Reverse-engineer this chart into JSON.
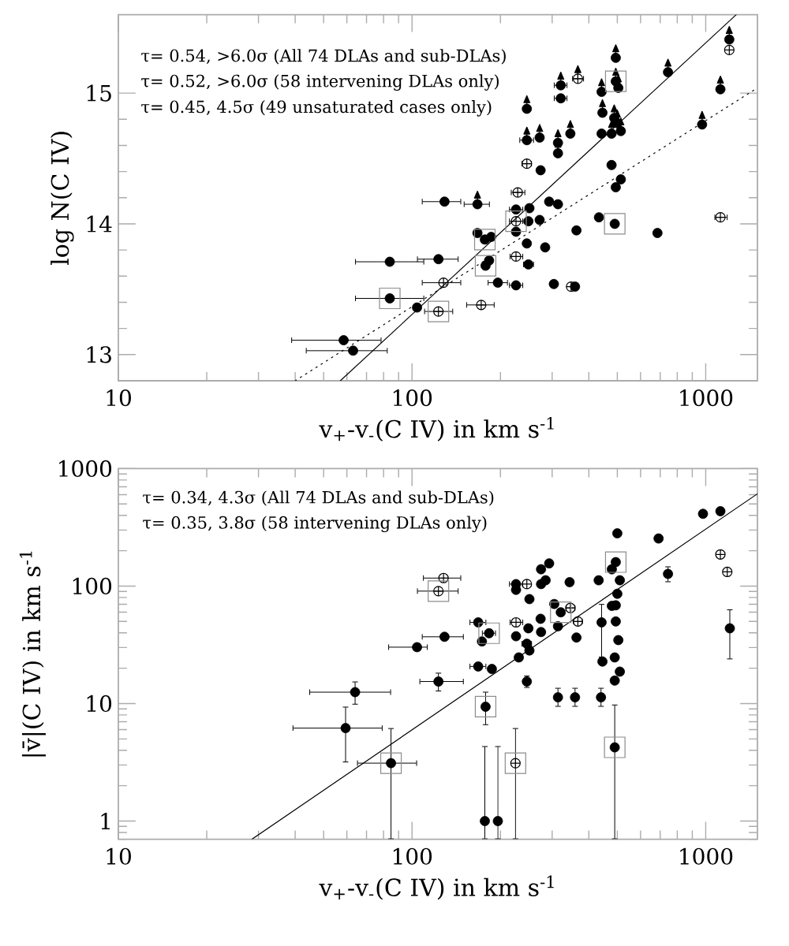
{
  "chart_data": [
    {
      "type": "scatter",
      "xlabel": "v$_{+}$-v$_{-}$(C IV) in km s$^{-1}$",
      "ylabel": "log N(C IV)",
      "annotations": [
        "τ= 0.54, >6.0σ (All 74 DLAs and sub-DLAs)",
        "τ= 0.52, >6.0σ (58 intervening DLAs only)",
        "τ= 0.45, 4.5σ (49 unsaturated cases only)"
      ],
      "log": "x",
      "xlim": [
        10,
        1500
      ],
      "ylim": [
        12.8,
        15.6
      ],
      "xticks": [
        10,
        100,
        1000
      ],
      "yticks": [
        13,
        14,
        15
      ],
      "series": [
        {
          "type": "scatter",
          "marker": "circle",
          "color": "#000000",
          "x": [
            685,
            490,
            433,
            514,
            494,
            478,
            442,
            321,
            274,
            129,
            226,
            251,
            293,
            314,
            226,
            249,
            272,
            363,
            167,
            177,
            186,
            246,
            284,
            183,
            178,
            249,
            84,
            123,
            196,
            226,
            304,
            359,
            84,
            104,
            58.5,
            63
          ],
          "values": [
            13.93,
            14.0,
            14.05,
            14.34,
            14.28,
            14.45,
            14.69,
            14.96,
            14.41,
            14.17,
            14.11,
            14.12,
            14.17,
            14.15,
            13.94,
            14.02,
            14.03,
            13.95,
            13.93,
            13.88,
            13.9,
            13.85,
            13.82,
            13.72,
            13.68,
            13.69,
            13.71,
            13.73,
            13.55,
            13.53,
            13.54,
            13.52,
            13.43,
            13.36,
            13.11,
            13.03
          ],
          "xerrors": [
            null,
            null,
            null,
            null,
            null,
            null,
            null,
            [
              304,
              338
            ],
            null,
            [
              108,
              147
            ],
            [
              214,
              239
            ],
            null,
            null,
            null,
            null,
            null,
            null,
            null,
            null,
            null,
            null,
            null,
            null,
            null,
            null,
            [
              239,
              260
            ],
            [
              64,
              110
            ],
            [
              104,
              144
            ],
            [
              181,
              212
            ],
            [
              214,
              239
            ],
            null,
            null,
            [
              64,
              110
            ],
            null,
            [
              38.8,
              78.7
            ],
            [
              43.5,
              82.6
            ]
          ]
        },
        {
          "type": "scatter",
          "marker": "circle",
          "color": "#000000",
          "x": [
            1203,
            1122,
            972,
            744,
            494,
            494,
            504,
            442,
            445,
            488,
            500,
            478,
            514,
            321,
            246,
            246,
            272,
            314,
            314,
            346,
            167
          ],
          "values": [
            15.41,
            15.03,
            14.76,
            15.16,
            15.27,
            15.09,
            15.04,
            15.01,
            14.85,
            14.81,
            14.77,
            14.69,
            14.71,
            15.06,
            14.88,
            14.64,
            14.66,
            14.62,
            14.54,
            14.69,
            14.15
          ],
          "errors": [
            [
              15.41,
              15.51
            ],
            [
              15.03,
              15.13
            ],
            [
              14.76,
              14.86
            ],
            [
              15.16,
              15.26
            ],
            [
              15.27,
              15.37
            ],
            [
              15.09,
              15.19
            ],
            [
              15.04,
              15.14
            ],
            [
              15.01,
              15.11
            ],
            [
              14.85,
              14.95
            ],
            [
              14.81,
              14.91
            ],
            [
              14.77,
              14.87
            ],
            [
              14.69,
              14.79
            ],
            [
              14.71,
              14.81
            ],
            [
              15.06,
              15.16
            ],
            [
              14.88,
              14.98
            ],
            [
              14.64,
              14.74
            ],
            [
              14.66,
              14.76
            ],
            [
              14.62,
              14.72
            ],
            [
              14.54,
              14.64
            ],
            [
              14.69,
              14.79
            ],
            [
              14.15,
              14.25
            ]
          ],
          "xerrors": [
            null,
            null,
            null,
            null,
            null,
            null,
            null,
            null,
            null,
            null,
            null,
            null,
            null,
            [
              304,
              338
            ],
            null,
            [
              232,
              260
            ],
            null,
            null,
            null,
            null,
            [
              150,
              184
            ]
          ]
        },
        {
          "type": "scatter",
          "marker": "cross",
          "color": "#000000",
          "x": [
            1203,
            1122,
            367,
            246,
            229,
            226,
            226,
            128,
            348,
            123,
            172
          ],
          "values": [
            15.33,
            14.05,
            15.11,
            14.46,
            14.24,
            14.02,
            13.75,
            13.55,
            13.52,
            13.33,
            13.38
          ],
          "errors": [
            null,
            null,
            [
              15.11,
              15.21
            ],
            null,
            null,
            null,
            null,
            null,
            null,
            null,
            null
          ],
          "xerrors": [
            null,
            [
              1071,
              1187
            ],
            [
              351,
              385
            ],
            [
              236,
              256
            ],
            [
              217,
              243
            ],
            [
              214,
              239
            ],
            [
              215,
              239
            ],
            [
              108,
              147
            ],
            null,
            [
              110,
              138
            ],
            [
              153,
              191
            ]
          ]
        },
        {
          "type": "scatter",
          "marker": "square",
          "color": "#8c8c8c",
          "x": [
            490,
            494,
            226,
            177,
            178,
            84,
            123
          ],
          "values": [
            14.0,
            15.09,
            14.02,
            13.88,
            13.68,
            13.43,
            13.33
          ]
        },
        {
          "type": "line",
          "marker": "none",
          "line_style": "solid",
          "color": "#000000",
          "x": [
            57,
            1270
          ],
          "values": [
            12.8,
            15.6
          ]
        },
        {
          "type": "line",
          "marker": "none",
          "line_style": "dotted",
          "color": "#000000",
          "x": [
            40,
            1500
          ],
          "values": [
            12.8,
            15.04
          ]
        }
      ]
    },
    {
      "type": "scatter",
      "xlabel": "v$_{+}$-v$_{-}$(C IV) in km s$^{-1}$",
      "ylabel": "|v̄|(C IV) in km s$^{-1}$",
      "annotations": [
        "τ= 0.34, 4.3σ (All 74 DLAs and sub-DLAs)",
        "τ= 0.35, 3.8σ (58 intervening DLAs only)"
      ],
      "log": "xy",
      "xlim": [
        10,
        1500
      ],
      "ylim": [
        0.7,
        1000
      ],
      "xticks": [
        10,
        100,
        1000
      ],
      "yticks": [
        1,
        10,
        100,
        1000
      ],
      "series": [
        {
          "type": "scatter",
          "marker": "circle",
          "color": "#000000",
          "x": [
            979,
            1122,
            691,
            500,
            744,
            1208,
            494,
            479,
            293,
            275,
            226,
            226,
            275,
            285,
            251,
            344,
            432,
            510,
            500,
            494,
            479,
            305,
            321,
            314,
            274,
            249,
            275,
            442,
            494,
            226,
            168,
            183,
            173,
            129,
            104,
            246,
            251,
            363,
            504,
            231,
            445,
            490,
            510,
            490,
            168,
            187,
            123,
            246,
            314,
            359,
            440,
            178,
            490,
            84.8,
            64,
            59.4,
            177,
            196
          ],
          "values": [
            412,
            434,
            254,
            281,
            127,
            43.7,
            160,
            139,
            156,
            139,
            104,
            93,
            104,
            112,
            77.5,
            108,
            112,
            112,
            86,
            68.6,
            67.8,
            70.4,
            59.8,
            45.5,
            52.7,
            43.7,
            40.6,
            49.1,
            50,
            37.4,
            49.1,
            39.7,
            33.8,
            37,
            30.2,
            32.3,
            28.3,
            36.5,
            34.7,
            24.7,
            22.8,
            24.7,
            18.7,
            15.7,
            20.7,
            19.7,
            15.4,
            15.4,
            11.3,
            11.3,
            11.3,
            9.4,
            4.24,
            3.11,
            12.5,
            6.18,
            1.0,
            1.0
          ],
          "errors": [
            null,
            null,
            null,
            null,
            [
              108,
              147
            ],
            [
              23.8,
              63.3
            ],
            null,
            null,
            null,
            null,
            null,
            null,
            null,
            null,
            null,
            null,
            null,
            null,
            null,
            null,
            null,
            null,
            null,
            null,
            null,
            null,
            null,
            [
              24.7,
              70.4
            ],
            null,
            null,
            null,
            null,
            null,
            null,
            null,
            null,
            null,
            null,
            null,
            null,
            null,
            null,
            null,
            null,
            null,
            null,
            [
              12.7,
              18.3
            ],
            [
              13.6,
              17.3
            ],
            [
              9.4,
              13.6
            ],
            [
              9.4,
              13.6
            ],
            [
              9.4,
              13.6
            ],
            [
              6.56,
              12.6
            ],
            [
              0.7,
              9.8
            ],
            [
              0.7,
              6.18
            ],
            [
              9.8,
              15.4
            ],
            [
              3.16,
              9.4
            ],
            [
              0.7,
              4.34
            ],
            [
              0.7,
              4.34
            ]
          ],
          "xerrors": [
            null,
            null,
            null,
            null,
            null,
            null,
            null,
            null,
            null,
            null,
            [
              214,
              239
            ],
            null,
            null,
            null,
            null,
            null,
            null,
            null,
            null,
            null,
            null,
            null,
            null,
            null,
            null,
            null,
            null,
            null,
            null,
            null,
            [
              157,
              179
            ],
            [
              173,
              193
            ],
            null,
            [
              108,
              150
            ],
            [
              83,
              113
            ],
            [
              236,
              256
            ],
            null,
            null,
            null,
            null,
            null,
            null,
            null,
            null,
            [
              157,
              179
            ],
            null,
            [
              106,
              150
            ],
            null,
            null,
            null,
            null,
            null,
            null,
            [
              65,
              104
            ],
            [
              44.7,
              84.8
            ],
            [
              39.2,
              79.4
            ],
            null,
            null
          ]
        },
        {
          "type": "scatter",
          "marker": "cross",
          "color": "#000000",
          "x": [
            1122,
            1184,
            128,
            123,
            246,
            346,
            367,
            226,
            225
          ],
          "values": [
            186,
            132,
            117,
            90.6,
            104,
            65.1,
            50,
            49.1,
            3.11
          ],
          "errors": [
            null,
            null,
            null,
            null,
            null,
            null,
            null,
            null,
            [
              0.7,
              6.18
            ]
          ],
          "xerrors": [
            null,
            null,
            [
              109,
              147
            ],
            [
              104,
              144
            ],
            null,
            [
              334,
              360
            ],
            [
              354,
              381
            ],
            [
              215,
              239
            ],
            null
          ]
        },
        {
          "type": "scatter",
          "marker": "square",
          "color": "#8c8c8c",
          "x": [
            494,
            123,
            321,
            183,
            178,
            490,
            225,
            84.8
          ],
          "values": [
            160,
            90.6,
            59.8,
            39.7,
            9.4,
            4.24,
            3.11,
            3.11
          ]
        },
        {
          "type": "line",
          "marker": "none",
          "line_style": "solid",
          "color": "#000000",
          "x": [
            28.5,
            1500
          ],
          "values": [
            0.7,
            610
          ]
        }
      ]
    }
  ]
}
